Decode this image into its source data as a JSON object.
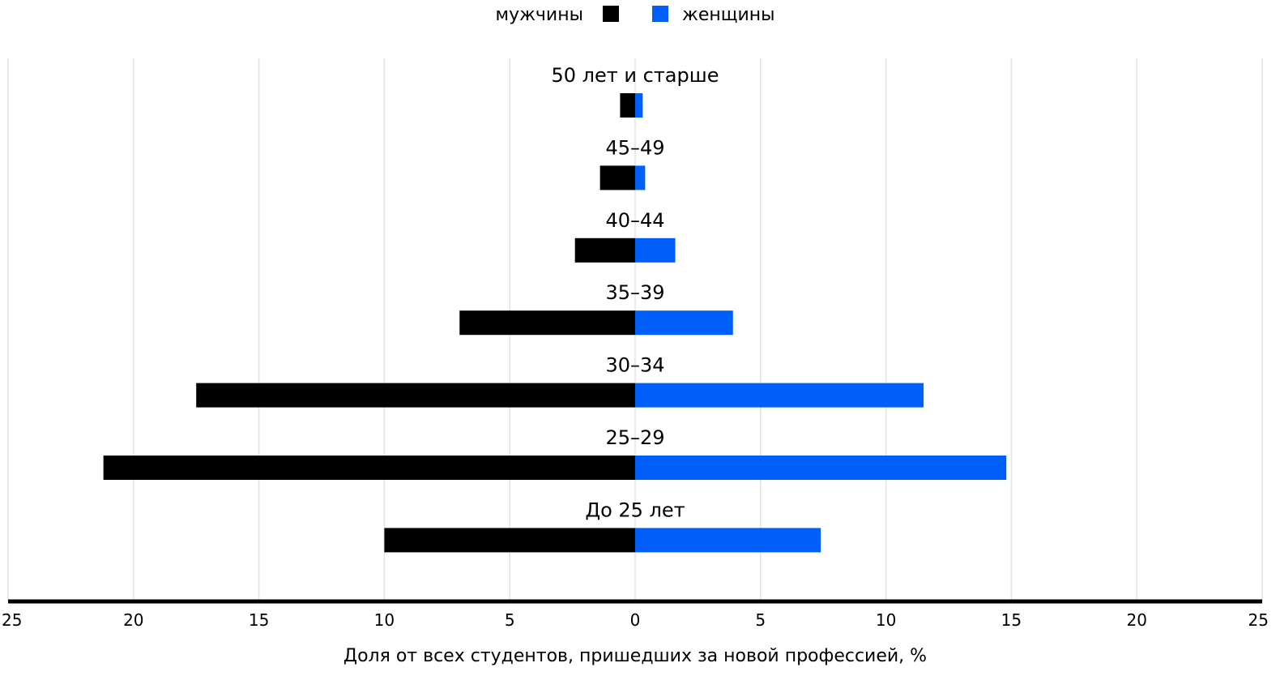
{
  "chart_data": {
    "type": "bar",
    "orientation": "horizontal-diverging",
    "categories": [
      "50 лет и старше",
      "45–49",
      "40–44",
      "35–39",
      "30–34",
      "25–29",
      "До 25 лет"
    ],
    "series": [
      {
        "name": "мужчины",
        "side": "left",
        "color": "#000000",
        "values": [
          0.6,
          1.4,
          2.4,
          7.0,
          17.5,
          21.2,
          10.0
        ]
      },
      {
        "name": "женщины",
        "side": "right",
        "color": "#005ff9",
        "values": [
          0.3,
          0.4,
          1.6,
          3.9,
          11.5,
          14.8,
          7.4
        ]
      }
    ],
    "xticks": [
      "25",
      "20",
      "15",
      "10",
      "5",
      "0",
      "5",
      "10",
      "15",
      "20",
      "25"
    ],
    "xlim": [
      -25,
      25
    ],
    "xlabel": "Доля от всех студентов, пришедших за новой профессией, %",
    "ylabel": "",
    "title": "",
    "grid": true,
    "legend_position": "top-center"
  }
}
